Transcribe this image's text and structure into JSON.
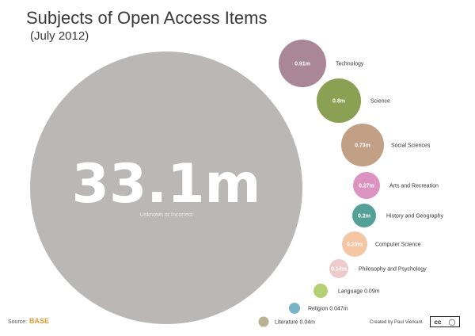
{
  "title": "Subjects of Open Access Items",
  "subtitle": "(July 2012)",
  "footer": {
    "source_label": "Source:",
    "source_logo": "BASE",
    "credit": "Created by Paul Vierkant",
    "license_icon": "creative-commons-by-icon"
  },
  "chart_data": {
    "type": "bubble",
    "unit": "m",
    "big": {
      "label": "Unknown or Incorrect",
      "value": 33.1,
      "display": "33.1m",
      "color": "#b9b8b7"
    },
    "items": [
      {
        "label": "Technology",
        "value": 0.91,
        "display": "0.91m",
        "color": "#a98797",
        "value_inside": true
      },
      {
        "label": "Science",
        "value": 0.8,
        "display": "0.8m",
        "color": "#8aa052",
        "value_inside": true
      },
      {
        "label": "Social Sciences",
        "value": 0.73,
        "display": "0.73m",
        "color": "#c1a086",
        "value_inside": true
      },
      {
        "label": "Arts and Recreation",
        "value": 0.27,
        "display": "0.27m",
        "color": "#dd93c1",
        "value_inside": true
      },
      {
        "label": "History and Geography",
        "value": 0.2,
        "display": "0.2m",
        "color": "#53a196",
        "value_inside": true
      },
      {
        "label": "Computer Science",
        "value": 0.23,
        "display": "0.23m",
        "color": "#f5c6a3",
        "value_inside": true
      },
      {
        "label": "Philosophy and Psychology",
        "value": 0.14,
        "display": "0.14m",
        "color": "#edcbcd",
        "value_inside": true
      },
      {
        "label": "Language",
        "value": 0.09,
        "display": "0.09m",
        "color": "#b4cf74",
        "value_inside": false
      },
      {
        "label": "Religion",
        "value": 0.047,
        "display": "0.047m",
        "color": "#78b4c8",
        "value_inside": false
      },
      {
        "label": "Literature",
        "value": 0.04,
        "display": "0.04m",
        "color": "#b9b193",
        "value_inside": false
      }
    ]
  }
}
